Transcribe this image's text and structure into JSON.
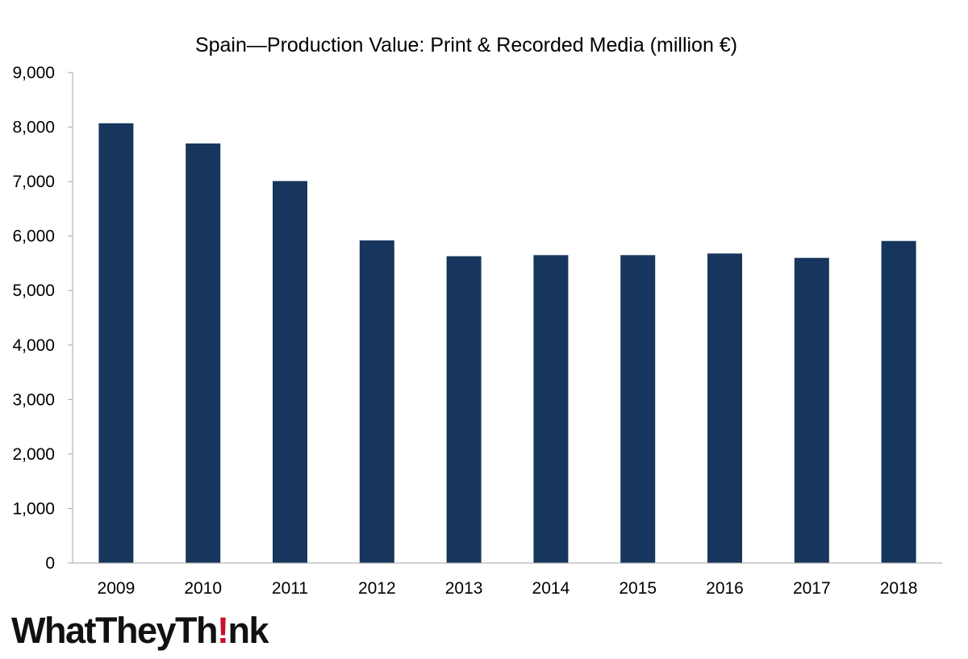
{
  "brand": {
    "logo_before": "WhatTheyTh",
    "logo_mark": "!",
    "logo_after": "nk",
    "logo_mark_color": "#c8102e"
  },
  "chart_data": {
    "type": "bar",
    "title": "Spain—Production Value: Print & Recorded Media (million €)",
    "xlabel": "",
    "ylabel": "",
    "categories": [
      "2009",
      "2010",
      "2011",
      "2012",
      "2013",
      "2014",
      "2015",
      "2016",
      "2017",
      "2018"
    ],
    "values": [
      8070,
      7700,
      7010,
      5920,
      5630,
      5650,
      5650,
      5680,
      5600,
      5910
    ],
    "ylim": [
      0,
      9000
    ],
    "yticks": [
      0,
      1000,
      2000,
      3000,
      4000,
      5000,
      6000,
      7000,
      8000,
      9000
    ],
    "ytick_labels": [
      "0",
      "1,000",
      "2,000",
      "3,000",
      "4,000",
      "5,000",
      "6,000",
      "7,000",
      "8,000",
      "9,000"
    ],
    "bar_color": "#17365d",
    "grid": false,
    "legend": "none"
  }
}
